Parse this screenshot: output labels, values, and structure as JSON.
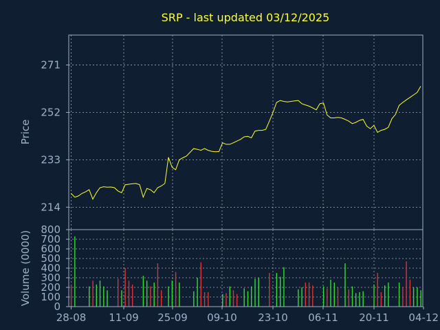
{
  "chart_data": [
    {
      "type": "line",
      "title": "SRP - last updated 03/12/2025",
      "ylabel": "Price",
      "ylim": [
        205,
        283
      ],
      "yticks": [
        "214",
        "233",
        "252",
        "271"
      ],
      "xlabels": [
        "28-08",
        "11-09",
        "25-09",
        "09-10",
        "23-10",
        "06-11",
        "20-11",
        "04-12"
      ],
      "grid": true,
      "colors": {
        "line": "#ffff33"
      },
      "series": [
        {
          "values": [
            219.5,
            218.0,
            218.5,
            219.5,
            220.2,
            221.0,
            217.2,
            219.8,
            221.8,
            222.2,
            222.0,
            222.1,
            221.8,
            220.5,
            219.8,
            223.0,
            223.2,
            223.4,
            223.5,
            223.0,
            218.0,
            221.5,
            221.0,
            219.8,
            221.8,
            222.5,
            223.5,
            234.0,
            230.0,
            229.0,
            233.0,
            233.8,
            234.5,
            236.0,
            237.5,
            237.2,
            236.8,
            237.5,
            236.8,
            236.4,
            236.2,
            236.3,
            239.8,
            239.2,
            239.2,
            239.8,
            240.5,
            241.2,
            242.2,
            242.4,
            241.8,
            244.5,
            244.8,
            244.8,
            245.2,
            248.5,
            252.0,
            256.0,
            256.8,
            256.4,
            256.2,
            256.4,
            256.6,
            256.8,
            255.5,
            255.0,
            254.5,
            253.8,
            253.0,
            255.5,
            255.8,
            251.0,
            249.8,
            249.8,
            250.0,
            249.8,
            249.2,
            248.5,
            247.5,
            248.0,
            248.8,
            249.2,
            246.5,
            245.5,
            246.8,
            244.0,
            244.8,
            245.2,
            246.0,
            249.5,
            251.2,
            254.8,
            256.0,
            257.0,
            258.0,
            259.0,
            260.0,
            262.5
          ]
        }
      ]
    },
    {
      "type": "bar",
      "ylabel": "Volume (0000)",
      "ylim": [
        0,
        800
      ],
      "yticks": [
        "0",
        "100",
        "200",
        "300",
        "400",
        "500",
        "600",
        "700",
        "800"
      ],
      "colors": {
        "up": "#33dd33",
        "down": "#dd3333"
      },
      "series": [
        {
          "values": [
            230,
            730,
            0,
            0,
            0,
            210,
            270,
            230,
            270,
            210,
            170,
            0,
            0,
            290,
            170,
            400,
            270,
            230,
            0,
            0,
            320,
            270,
            210,
            250,
            450,
            170,
            0,
            210,
            270,
            360,
            250,
            0,
            0,
            0,
            160,
            300,
            460,
            150,
            150,
            0,
            0,
            0,
            130,
            140,
            210,
            170,
            130,
            0,
            190,
            160,
            210,
            290,
            300,
            0,
            0,
            350,
            0,
            350,
            310,
            410,
            0,
            0,
            0,
            180,
            200,
            250,
            250,
            220,
            0,
            0,
            210,
            190,
            280,
            250,
            200,
            0,
            450,
            180,
            210,
            140,
            150,
            160,
            0,
            0,
            230,
            350,
            150,
            220,
            250,
            0,
            0,
            250,
            200,
            470,
            280,
            200,
            200,
            170
          ],
          "directions": [
            "d",
            "u",
            "u",
            "u",
            "u",
            "u",
            "d",
            "u",
            "u",
            "u",
            "u",
            "u",
            "u",
            "d",
            "u",
            "d",
            "d",
            "d",
            "u",
            "u",
            "u",
            "u",
            "d",
            "u",
            "d",
            "d",
            "u",
            "u",
            "u",
            "d",
            "u",
            "u",
            "u",
            "u",
            "u",
            "u",
            "d",
            "d",
            "d",
            "u",
            "u",
            "u",
            "u",
            "d",
            "u",
            "d",
            "d",
            "u",
            "u",
            "u",
            "u",
            "u",
            "u",
            "u",
            "u",
            "d",
            "u",
            "u",
            "u",
            "u",
            "u",
            "u",
            "u",
            "u",
            "u",
            "d",
            "d",
            "d",
            "u",
            "u",
            "u",
            "d",
            "u",
            "u",
            "d",
            "u",
            "u",
            "d",
            "u",
            "u",
            "u",
            "u",
            "u",
            "u",
            "u",
            "d",
            "d",
            "u",
            "u",
            "u",
            "u",
            "u",
            "d",
            "d",
            "d",
            "u",
            "u",
            "u"
          ]
        }
      ]
    }
  ]
}
